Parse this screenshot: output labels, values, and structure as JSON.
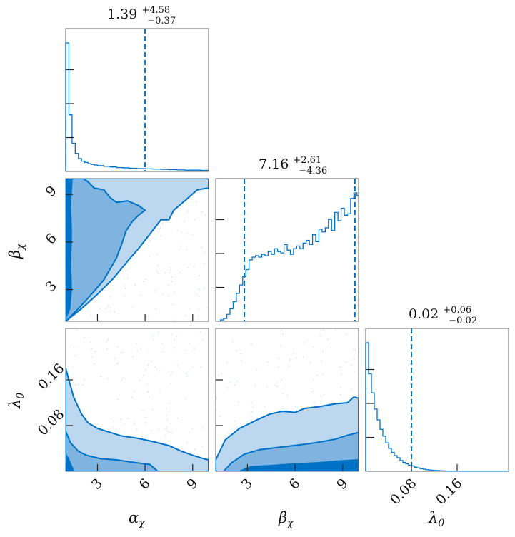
{
  "chart_data": {
    "type": "corner",
    "colors": {
      "main": "#0072c6",
      "dark": "#0072c6",
      "mid": "#7fb4e0",
      "light": "#bcd8f0",
      "scatter": "#a8cde9"
    },
    "parameters": [
      {
        "key": "alpha",
        "axis_label": "α",
        "axis_sub": "χ",
        "range": [
          1,
          10
        ],
        "ticks": [
          3,
          6,
          9
        ],
        "tick_labels": [
          "3",
          "6",
          "9"
        ],
        "title_main": "1.39",
        "title_plus": "+4.58",
        "title_minus": "−0.37",
        "quantile_lines": [
          6.0
        ]
      },
      {
        "key": "beta",
        "axis_label": "β",
        "axis_sub": "χ",
        "range": [
          1,
          10
        ],
        "ticks": [
          3,
          6,
          9
        ],
        "tick_labels": [
          "3",
          "6",
          "9"
        ],
        "title_main": "7.16",
        "title_plus": "+2.61",
        "title_minus": "−4.36",
        "quantile_lines": [
          2.8,
          9.77
        ]
      },
      {
        "key": "lambda",
        "axis_label": "λ",
        "axis_sub": "0",
        "range": [
          0,
          0.25
        ],
        "ticks": [
          0.08,
          0.16
        ],
        "tick_labels": [
          "0.08",
          "0.16"
        ],
        "title_main": "0.02",
        "title_plus": "+0.06",
        "title_minus": "−0.02",
        "quantile_lines": [
          0.08
        ]
      }
    ],
    "histograms": [
      {
        "param": "alpha",
        "bin_edges": [
          1.0,
          1.2,
          1.4,
          1.6,
          1.8,
          2.0,
          2.2,
          2.4,
          2.6,
          2.8,
          3.0,
          3.4,
          3.8,
          4.2,
          4.6,
          5.0,
          5.5,
          6.0,
          6.5,
          7.0,
          7.5,
          8.0,
          8.5,
          9.0,
          9.5,
          10.0
        ],
        "counts": [
          1.0,
          0.44,
          0.22,
          0.14,
          0.1,
          0.08,
          0.07,
          0.06,
          0.055,
          0.05,
          0.045,
          0.04,
          0.035,
          0.03,
          0.028,
          0.025,
          0.022,
          0.02,
          0.018,
          0.016,
          0.014,
          0.012,
          0.01,
          0.01,
          0.008
        ]
      },
      {
        "param": "beta",
        "bin_edges": [
          1.3,
          1.5,
          1.7,
          1.9,
          2.1,
          2.3,
          2.5,
          2.7,
          2.9,
          3.1,
          3.3,
          3.5,
          3.7,
          3.9,
          4.1,
          4.3,
          4.5,
          4.7,
          4.9,
          5.1,
          5.3,
          5.5,
          5.7,
          5.9,
          6.1,
          6.3,
          6.5,
          6.7,
          6.9,
          7.1,
          7.3,
          7.5,
          7.7,
          7.9,
          8.1,
          8.3,
          8.5,
          8.7,
          8.9,
          9.1,
          9.3,
          9.5,
          9.7,
          9.9,
          10.0
        ],
        "counts": [
          0.01,
          0.02,
          0.05,
          0.09,
          0.14,
          0.2,
          0.26,
          0.32,
          0.37,
          0.44,
          0.46,
          0.47,
          0.46,
          0.48,
          0.47,
          0.5,
          0.48,
          0.52,
          0.5,
          0.49,
          0.55,
          0.51,
          0.48,
          0.52,
          0.54,
          0.52,
          0.56,
          0.58,
          0.55,
          0.62,
          0.57,
          0.66,
          0.64,
          0.67,
          0.73,
          0.65,
          0.78,
          0.72,
          0.81,
          0.76,
          0.77,
          0.88,
          0.92,
          0.9
        ]
      },
      {
        "param": "lambda",
        "bin_edges": [
          0.0,
          0.005,
          0.01,
          0.015,
          0.02,
          0.025,
          0.03,
          0.035,
          0.04,
          0.045,
          0.05,
          0.055,
          0.06,
          0.065,
          0.07,
          0.075,
          0.08,
          0.085,
          0.09,
          0.095,
          0.1,
          0.105,
          0.11,
          0.115,
          0.12,
          0.125,
          0.13,
          0.135,
          0.14,
          0.25
        ],
        "counts": [
          0.95,
          0.72,
          0.58,
          0.46,
          0.38,
          0.31,
          0.26,
          0.21,
          0.17,
          0.14,
          0.115,
          0.1,
          0.08,
          0.065,
          0.055,
          0.045,
          0.04,
          0.03,
          0.025,
          0.02,
          0.016,
          0.012,
          0.01,
          0.008,
          0.006,
          0.005,
          0.004,
          0.003,
          0.002
        ]
      }
    ],
    "contours_2d": [
      {
        "x": "alpha",
        "y": "beta",
        "dark": [
          [
            1.0,
            1.2
          ],
          [
            1.25,
            1.8
          ],
          [
            1.35,
            3.0
          ],
          [
            1.3,
            4.6
          ],
          [
            1.35,
            6.5
          ],
          [
            1.3,
            8.5
          ],
          [
            1.4,
            10.0
          ],
          [
            1.0,
            10.0
          ]
        ],
        "mid": [
          [
            1.0,
            1.0
          ],
          [
            1.8,
            1.8
          ],
          [
            2.8,
            2.9
          ],
          [
            3.4,
            3.6
          ],
          [
            3.8,
            4.3
          ],
          [
            4.2,
            5.0
          ],
          [
            4.5,
            5.8
          ],
          [
            4.8,
            6.7
          ],
          [
            5.2,
            7.3
          ],
          [
            5.6,
            7.7
          ],
          [
            6.0,
            8.0
          ],
          [
            5.6,
            8.3
          ],
          [
            4.9,
            8.6
          ],
          [
            4.2,
            8.5
          ],
          [
            3.8,
            8.8
          ],
          [
            3.4,
            9.3
          ],
          [
            2.8,
            9.4
          ],
          [
            2.4,
            9.8
          ],
          [
            2.1,
            10.0
          ],
          [
            1.0,
            10.0
          ]
        ],
        "light": [
          [
            1.0,
            1.0
          ],
          [
            2.0,
            1.8
          ],
          [
            3.0,
            2.7
          ],
          [
            4.0,
            3.7
          ],
          [
            4.9,
            4.8
          ],
          [
            5.6,
            5.6
          ],
          [
            6.3,
            6.5
          ],
          [
            7.0,
            7.4
          ],
          [
            7.5,
            7.4
          ],
          [
            7.8,
            8.0
          ],
          [
            8.5,
            8.6
          ],
          [
            9.3,
            9.3
          ],
          [
            10.0,
            9.4
          ],
          [
            10.0,
            10.0
          ],
          [
            1.0,
            10.0
          ]
        ],
        "scatter_seed": 11
      },
      {
        "x": "alpha",
        "y": "lambda",
        "dark": [
          [
            1.0,
            0.0
          ],
          [
            1.0,
            0.03
          ],
          [
            1.2,
            0.02
          ],
          [
            1.5,
            0.0
          ]
        ],
        "mid": [
          [
            1.0,
            0.0
          ],
          [
            1.0,
            0.07
          ],
          [
            1.3,
            0.05
          ],
          [
            1.8,
            0.035
          ],
          [
            2.3,
            0.028
          ],
          [
            3.2,
            0.022
          ],
          [
            4.2,
            0.02
          ],
          [
            5.2,
            0.016
          ],
          [
            6.3,
            0.012
          ],
          [
            6.8,
            0.0
          ]
        ],
        "light": [
          [
            1.0,
            0.0
          ],
          [
            1.0,
            0.18
          ],
          [
            1.2,
            0.16
          ],
          [
            1.5,
            0.13
          ],
          [
            2.0,
            0.1
          ],
          [
            2.4,
            0.085
          ],
          [
            3.0,
            0.075
          ],
          [
            3.8,
            0.068
          ],
          [
            4.5,
            0.062
          ],
          [
            5.5,
            0.058
          ],
          [
            6.5,
            0.052
          ],
          [
            7.5,
            0.045
          ],
          [
            8.3,
            0.035
          ],
          [
            9.0,
            0.028
          ],
          [
            9.7,
            0.022
          ],
          [
            10.0,
            0.02
          ],
          [
            10.0,
            0.0
          ]
        ],
        "scatter_seed": 23
      },
      {
        "x": "beta",
        "y": "lambda",
        "dark": [
          [
            2.5,
            0.0
          ],
          [
            3.2,
            0.008
          ],
          [
            4.5,
            0.01
          ],
          [
            6.0,
            0.013
          ],
          [
            7.5,
            0.015
          ],
          [
            8.8,
            0.018
          ],
          [
            10.0,
            0.02
          ],
          [
            10.0,
            0.0
          ]
        ],
        "mid": [
          [
            1.5,
            0.0
          ],
          [
            2.0,
            0.015
          ],
          [
            2.8,
            0.03
          ],
          [
            3.8,
            0.038
          ],
          [
            5.0,
            0.042
          ],
          [
            6.2,
            0.046
          ],
          [
            7.3,
            0.05
          ],
          [
            8.5,
            0.056
          ],
          [
            9.3,
            0.063
          ],
          [
            10.0,
            0.068
          ],
          [
            10.0,
            0.0
          ]
        ],
        "light": [
          [
            1.0,
            0.0
          ],
          [
            1.0,
            0.02
          ],
          [
            1.6,
            0.055
          ],
          [
            2.5,
            0.075
          ],
          [
            3.6,
            0.09
          ],
          [
            4.4,
            0.1
          ],
          [
            5.2,
            0.105
          ],
          [
            6.0,
            0.103
          ],
          [
            6.6,
            0.11
          ],
          [
            7.5,
            0.113
          ],
          [
            8.5,
            0.118
          ],
          [
            9.3,
            0.12
          ],
          [
            9.7,
            0.13
          ],
          [
            10.0,
            0.128
          ],
          [
            10.0,
            0.0
          ]
        ],
        "scatter_seed": 37
      }
    ]
  }
}
